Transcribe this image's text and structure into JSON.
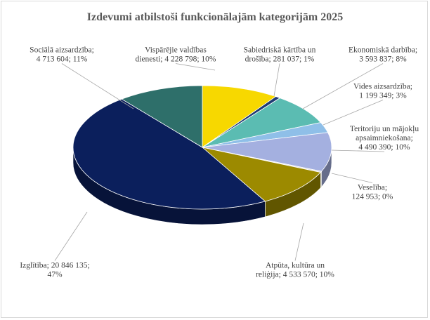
{
  "chart_data": {
    "type": "pie",
    "title": "Izdevumi atbilstoši funkcionālajām kategorijām 2025",
    "slices": [
      {
        "name": "Vispārējie valdības dienesti",
        "value": 4228798,
        "percent": "10%",
        "color": "#f7d800",
        "label_lines": [
          "Vispārējie valdības",
          "dienesti; 4 228 798; 10%"
        ]
      },
      {
        "name": "Sabiedriskā kārtība un drošība",
        "value": 281037,
        "percent": "1%",
        "color": "#1f3b73",
        "label_lines": [
          "Sabiedriskā kārtība un",
          "drošība; 281 037; 1%"
        ]
      },
      {
        "name": "Ekonomiskā darbība",
        "value": 3593837,
        "percent": "8%",
        "color": "#5bbcb2",
        "label_lines": [
          "Ekonomiskā darbība;",
          "3 593 837; 8%"
        ]
      },
      {
        "name": "Vides aizsardzība",
        "value": 1199349,
        "percent": "3%",
        "color": "#8fbfe8",
        "label_lines": [
          "Vides aizsardzība;",
          "1 199 349; 3%"
        ]
      },
      {
        "name": "Teritoriju un mājokļu apsaimniekošana",
        "value": 4490390,
        "percent": "10%",
        "color": "#a4b0e0",
        "label_lines": [
          "Teritoriju un mājokļu",
          "apsaimniekošana;",
          "4 490 390; 10%"
        ]
      },
      {
        "name": "Veselība",
        "value": 124953,
        "percent": "0%",
        "color": "#d9d9d9",
        "label_lines": [
          "Veselība;",
          "124 953; 0%"
        ]
      },
      {
        "name": "Atpūta, kultūra un reliģija",
        "value": 4533570,
        "percent": "10%",
        "color": "#9c8a00",
        "label_lines": [
          "Atpūta, kultūra un",
          "reliģija; 4 533 570; 10%"
        ]
      },
      {
        "name": "Izglītība",
        "value": 20846135,
        "percent": "47%",
        "color": "#0b1f5c",
        "label_lines": [
          "Izglītība; 20 846 135;",
          "47%"
        ]
      },
      {
        "name": "Sociālā aizsardzība",
        "value": 4713604,
        "percent": "11%",
        "color": "#2e6f6a",
        "label_lines": [
          "Sociālā aizsardzība;",
          "4 713 604; 11%"
        ]
      }
    ]
  }
}
